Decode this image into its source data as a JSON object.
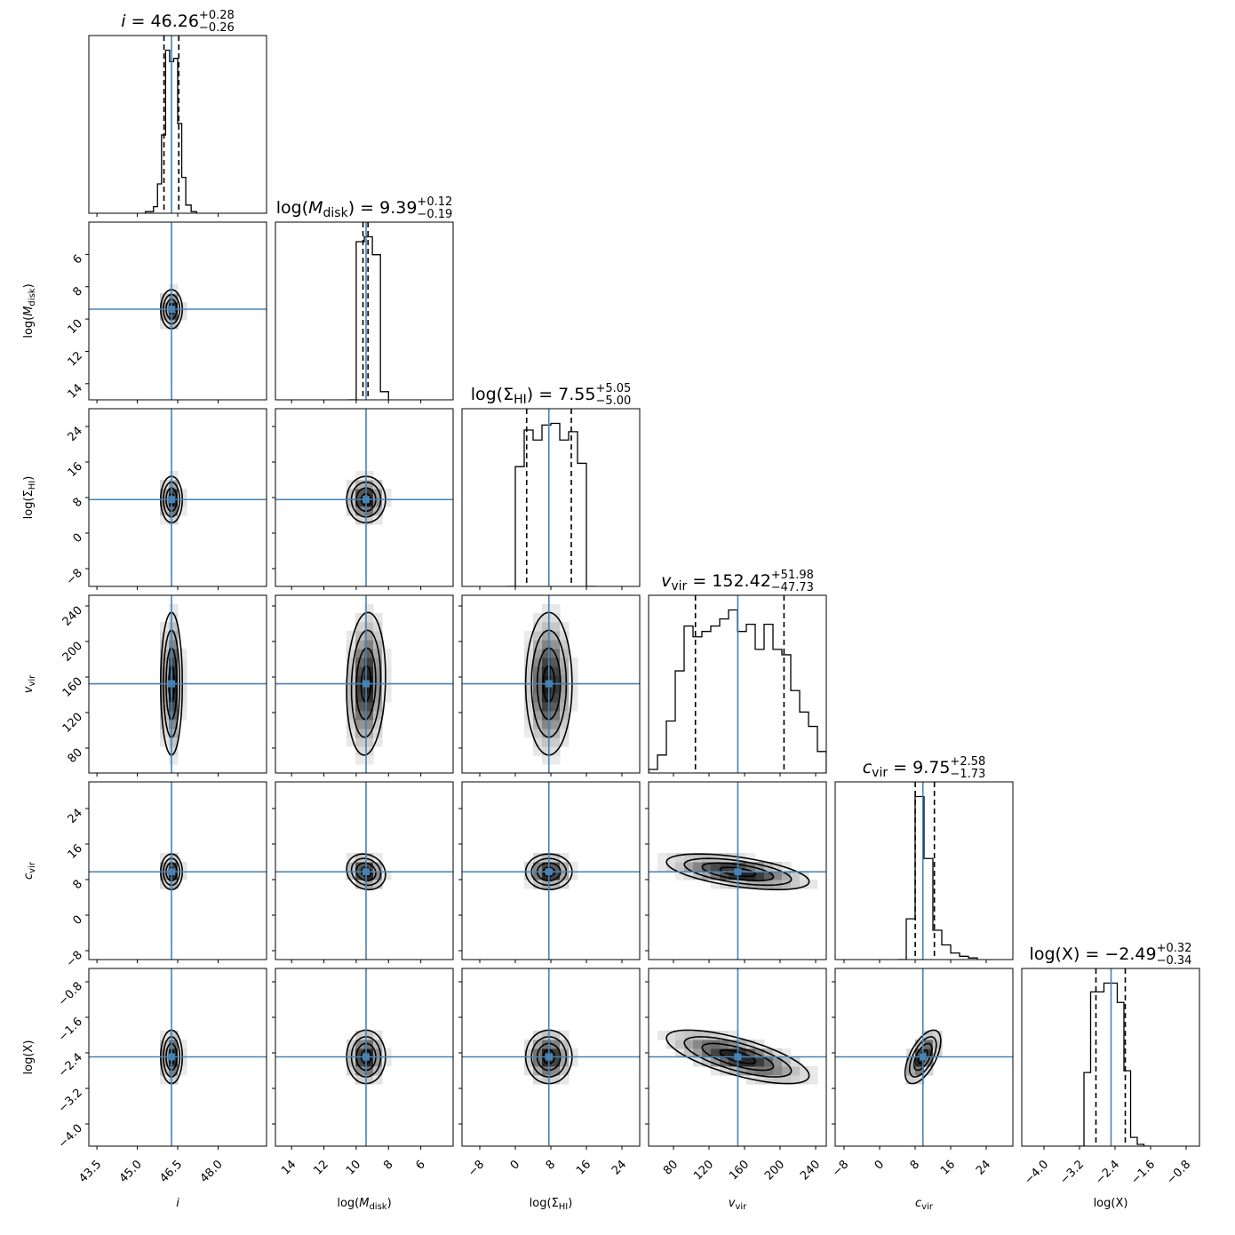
{
  "chart_data": {
    "type": "corner",
    "colors": {
      "truth": "#4682b4",
      "histogram": "#000000",
      "contour": "#000000",
      "density": "#000000"
    },
    "parameters": [
      {
        "name": "i",
        "xlabel": "i",
        "title": {
          "prefix": "i = 46.26",
          "sup": "+0.28",
          "sub": "−0.26"
        },
        "range": [
          43.2,
          49.8
        ],
        "ticks": [
          43.5,
          45.0,
          46.5,
          48.0
        ],
        "tick_labels": [
          "43.5",
          "45.0",
          "46.5",
          "48.0"
        ],
        "ylabel": "",
        "median": 46.26,
        "q16": 45.99,
        "q84": 46.54,
        "truth": 46.27,
        "sigma": 0.2,
        "hist_x": [
          45.3,
          45.6,
          45.75,
          45.9,
          46.05,
          46.2,
          46.35,
          46.5,
          46.65,
          46.8,
          47.0,
          47.2
        ],
        "hist_y": [
          0.01,
          0.04,
          0.18,
          0.48,
          1.0,
          0.93,
          0.95,
          0.55,
          0.22,
          0.05,
          0.01,
          0.0
        ]
      },
      {
        "name": "log_M_disk",
        "xlabel": "log(M_disk)",
        "title": {
          "prefix": "log(M_disk) = 9.39",
          "sup": "+0.12",
          "sub": "−0.19"
        },
        "range": [
          15.0,
          4.0
        ],
        "ticks": [
          14,
          12,
          10,
          8,
          6
        ],
        "tick_labels": [
          "14",
          "12",
          "10",
          "8",
          "6"
        ],
        "ylabel": "log(M_disk)",
        "median": 9.39,
        "q16": 9.58,
        "q84": 9.27,
        "truth": 9.39,
        "sigma": 0.6,
        "hist_x": [
          10.5,
          10.0,
          9.5,
          9.0,
          8.5,
          8.0
        ],
        "hist_y": [
          0.0,
          0.97,
          1.0,
          0.89,
          0.05,
          0.0
        ]
      },
      {
        "name": "log_Sigma_HI",
        "xlabel": "log(Σ_HI)",
        "title": {
          "prefix": "log(Σ_HI) = 7.55",
          "sup": "+5.05",
          "sub": "−5.00"
        },
        "range": [
          -12.0,
          28.0
        ],
        "ticks": [
          -8,
          0,
          8,
          16,
          24
        ],
        "tick_labels": [
          "−8",
          "0",
          "8",
          "16",
          "24"
        ],
        "ylabel": "log(Σ_HI)",
        "median": 7.55,
        "q16": 2.55,
        "q84": 12.6,
        "truth": 7.55,
        "sigma": 2.6,
        "hist_x": [
          -2,
          0,
          2,
          4,
          6,
          8,
          10,
          12,
          14,
          16,
          18
        ],
        "hist_y": [
          0.0,
          0.72,
          0.94,
          0.88,
          0.97,
          0.98,
          0.88,
          0.93,
          0.74,
          0.0,
          0.0
        ]
      },
      {
        "name": "v_vir",
        "xlabel": "v_vir",
        "title": {
          "prefix": "v_vir = 152.42",
          "sup": "+51.98",
          "sub": "−47.73"
        },
        "range": [
          52.0,
          252.0
        ],
        "ticks": [
          80,
          120,
          160,
          200,
          240
        ],
        "tick_labels": [
          "80",
          "120",
          "160",
          "200",
          "240"
        ],
        "ylabel": "v_vir",
        "median": 152.42,
        "q16": 104.7,
        "q84": 204.4,
        "truth": 152.42,
        "sigma": 40,
        "hist_x": [
          52,
          62,
          72,
          82,
          92,
          102,
          112,
          122,
          132,
          142,
          152,
          162,
          172,
          182,
          192,
          202,
          212,
          222,
          232,
          242,
          252
        ],
        "hist_y": [
          0.02,
          0.1,
          0.29,
          0.57,
          0.82,
          0.76,
          0.79,
          0.82,
          0.86,
          0.91,
          0.79,
          0.83,
          0.69,
          0.83,
          0.69,
          0.66,
          0.46,
          0.34,
          0.26,
          0.12,
          0.12
        ]
      },
      {
        "name": "c_vir",
        "xlabel": "c_vir",
        "title": {
          "prefix": "c_vir = 9.75",
          "sup": "+2.58",
          "sub": "−1.73"
        },
        "range": [
          -10.0,
          30.0
        ],
        "ticks": [
          -8,
          0,
          8,
          16,
          24
        ],
        "tick_labels": [
          "−8",
          "0",
          "8",
          "16",
          "24"
        ],
        "ylabel": "c_vir",
        "median": 9.75,
        "q16": 8.02,
        "q84": 12.33,
        "truth": 9.75,
        "sigma": 2.0,
        "hist_x": [
          4,
          6,
          8,
          10,
          12,
          14,
          16,
          18,
          20,
          22
        ],
        "hist_y": [
          0.0,
          0.25,
          1.0,
          0.62,
          0.18,
          0.09,
          0.04,
          0.02,
          0.01,
          0.0
        ]
      },
      {
        "name": "log_X",
        "xlabel": "log(X)",
        "title": {
          "prefix": "log(X) = −2.49",
          "sup": "+0.32",
          "sub": "−0.34"
        },
        "range": [
          -4.5,
          -0.5
        ],
        "ticks": [
          -4.0,
          -3.2,
          -2.4,
          -1.6,
          -0.8
        ],
        "tick_labels": [
          "−4.0",
          "−3.2",
          "−2.4",
          "−1.6",
          "−0.8"
        ],
        "ylabel": "log(X)",
        "median": -2.49,
        "q16": -2.83,
        "q84": -2.17,
        "truth": -2.49,
        "sigma": 0.3,
        "hist_x": [
          -3.3,
          -3.1,
          -2.95,
          -2.8,
          -2.65,
          -2.5,
          -2.35,
          -2.2,
          -2.05,
          -1.9,
          -1.75,
          -1.6
        ],
        "hist_y": [
          0.0,
          0.42,
          0.88,
          0.88,
          0.93,
          0.93,
          0.82,
          0.43,
          0.05,
          0.01,
          0.0,
          0.0
        ]
      }
    ],
    "pairs": [
      {
        "row": 1,
        "col": 0,
        "rho": 0.0
      },
      {
        "row": 2,
        "col": 0,
        "rho": 0.0
      },
      {
        "row": 2,
        "col": 1,
        "rho": 0.0
      },
      {
        "row": 3,
        "col": 0,
        "rho": 0.0
      },
      {
        "row": 3,
        "col": 1,
        "rho": -0.1
      },
      {
        "row": 3,
        "col": 2,
        "rho": 0.0
      },
      {
        "row": 4,
        "col": 0,
        "rho": 0.0
      },
      {
        "row": 4,
        "col": 1,
        "rho": 0.15
      },
      {
        "row": 4,
        "col": 2,
        "rho": 0.0
      },
      {
        "row": 4,
        "col": 3,
        "rho": -0.55
      },
      {
        "row": 5,
        "col": 0,
        "rho": 0.0
      },
      {
        "row": 5,
        "col": 1,
        "rho": 0.0
      },
      {
        "row": 5,
        "col": 2,
        "rho": 0.0
      },
      {
        "row": 5,
        "col": 3,
        "rho": -0.7
      },
      {
        "row": 5,
        "col": 4,
        "rho": 0.6
      }
    ]
  }
}
